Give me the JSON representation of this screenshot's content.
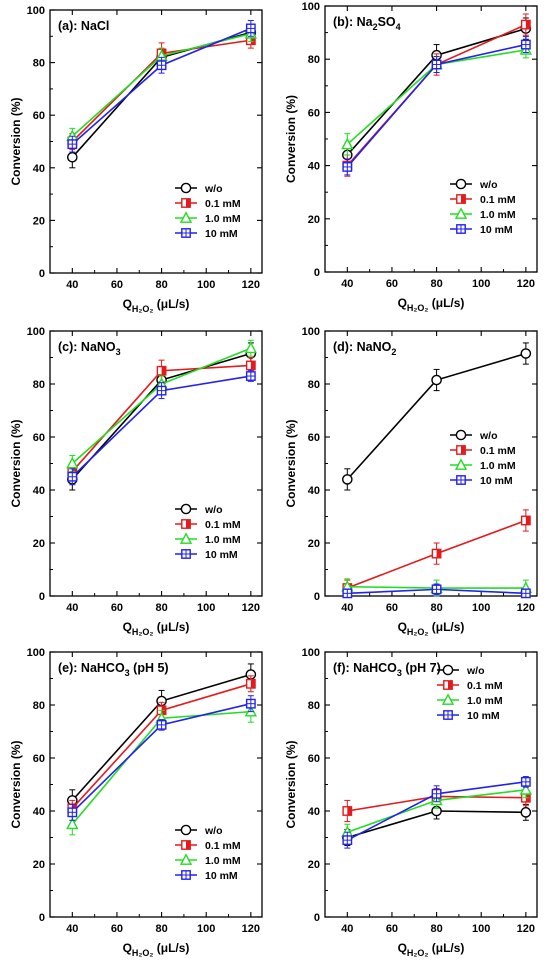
{
  "figure": {
    "colors": {
      "w/o": "#000000",
      "0.1 mM": "#e41a1c",
      "1.0 mM": "#22dd22",
      "10 mM": "#2222ee"
    },
    "marker_shapes": {
      "w/o": "circle",
      "0.1 mM": "half-square",
      "1.0 mM": "triangle",
      "10 mM": "crossed-square"
    }
  },
  "chart_data": [
    {
      "type": "line",
      "title": "(a): NaCl",
      "xlabel": "QH2O2 (μL/s)",
      "ylabel": "Conversion (%)",
      "xlim": [
        30,
        125
      ],
      "ylim": [
        0,
        100
      ],
      "x_ticks": [
        40,
        60,
        80,
        100,
        120
      ],
      "y_ticks": [
        0,
        20,
        40,
        60,
        80,
        100
      ],
      "legend_position": "bottom-right",
      "x": [
        40,
        80,
        120
      ],
      "series": [
        {
          "name": "w/o",
          "values": [
            44,
            82,
            91.5
          ],
          "errors": [
            4,
            3,
            3
          ]
        },
        {
          "name": "0.1 mM",
          "values": [
            50,
            83.5,
            88.5
          ],
          "errors": [
            3,
            4,
            3
          ]
        },
        {
          "name": "1.0 mM",
          "values": [
            52,
            82.5,
            91
          ],
          "errors": [
            3,
            3,
            3
          ]
        },
        {
          "name": "10 mM",
          "values": [
            49,
            79,
            93
          ],
          "errors": [
            3,
            3,
            3
          ]
        }
      ]
    },
    {
      "type": "line",
      "title": "(b): Na2SO4",
      "xlabel": "QH2O2 (μL/s)",
      "ylabel": "Conversion (%)",
      "xlim": [
        30,
        125
      ],
      "ylim": [
        0,
        100
      ],
      "x_ticks": [
        40,
        60,
        80,
        100,
        120
      ],
      "y_ticks": [
        0,
        20,
        40,
        60,
        80,
        100
      ],
      "legend_position": "bottom-right",
      "x": [
        40,
        80,
        120
      ],
      "series": [
        {
          "name": "w/o",
          "values": [
            44,
            81.5,
            91.5
          ],
          "errors": [
            4,
            4,
            4
          ]
        },
        {
          "name": "0.1 mM",
          "values": [
            40,
            78,
            93
          ],
          "errors": [
            4,
            4,
            4
          ]
        },
        {
          "name": "1.0 mM",
          "values": [
            48,
            78,
            83.5
          ],
          "errors": [
            4,
            3,
            3
          ]
        },
        {
          "name": "10 mM",
          "values": [
            39.5,
            78,
            85.5
          ],
          "errors": [
            3,
            3,
            3
          ]
        }
      ]
    },
    {
      "type": "line",
      "title": "(c): NaNO3",
      "xlabel": "QH2O2 (μL/s)",
      "ylabel": "Conversion (%)",
      "xlim": [
        30,
        125
      ],
      "ylim": [
        0,
        100
      ],
      "x_ticks": [
        40,
        60,
        80,
        100,
        120
      ],
      "y_ticks": [
        0,
        20,
        40,
        60,
        80,
        100
      ],
      "legend_position": "bottom-right",
      "x": [
        40,
        80,
        120
      ],
      "series": [
        {
          "name": "w/o",
          "values": [
            44,
            81.5,
            91.5
          ],
          "errors": [
            4,
            4,
            4
          ]
        },
        {
          "name": "0.1 mM",
          "values": [
            47,
            85,
            87
          ],
          "errors": [
            3,
            4,
            3
          ]
        },
        {
          "name": "1.0 mM",
          "values": [
            50,
            80,
            93.5
          ],
          "errors": [
            3,
            3,
            3
          ]
        },
        {
          "name": "10 mM",
          "values": [
            45,
            77.5,
            83
          ],
          "errors": [
            3,
            3,
            2
          ]
        }
      ]
    },
    {
      "type": "line",
      "title": "(d): NaNO2",
      "xlabel": "QH2O2 (μL/s)",
      "ylabel": "Conversion (%)",
      "xlim": [
        30,
        125
      ],
      "ylim": [
        0,
        100
      ],
      "x_ticks": [
        40,
        60,
        80,
        100,
        120
      ],
      "y_ticks": [
        0,
        20,
        40,
        60,
        80,
        100
      ],
      "legend_position": "center-right",
      "x": [
        40,
        80,
        120
      ],
      "series": [
        {
          "name": "w/o",
          "values": [
            44,
            81.5,
            91.5
          ],
          "errors": [
            4,
            4,
            4
          ]
        },
        {
          "name": "0.1 mM",
          "values": [
            3,
            16,
            28.5
          ],
          "errors": [
            3,
            4,
            4
          ]
        },
        {
          "name": "1.0 mM",
          "values": [
            3.5,
            3,
            3
          ],
          "errors": [
            3,
            3,
            3
          ]
        },
        {
          "name": "10 mM",
          "values": [
            1,
            2.5,
            1
          ],
          "errors": [
            1,
            2,
            1
          ]
        }
      ]
    },
    {
      "type": "line",
      "title": "(e): NaHCO3 (pH 5)",
      "xlabel": "QH2O2 (μL/s)",
      "ylabel": "Conversion (%)",
      "xlim": [
        30,
        125
      ],
      "ylim": [
        0,
        100
      ],
      "x_ticks": [
        40,
        60,
        80,
        100,
        120
      ],
      "y_ticks": [
        0,
        20,
        40,
        60,
        80,
        100
      ],
      "legend_position": "bottom-right",
      "x": [
        40,
        80,
        120
      ],
      "series": [
        {
          "name": "w/o",
          "values": [
            44,
            81.5,
            91.5
          ],
          "errors": [
            4,
            4,
            4
          ]
        },
        {
          "name": "0.1 mM",
          "values": [
            41,
            78,
            88
          ],
          "errors": [
            3,
            3,
            3
          ]
        },
        {
          "name": "1.0 mM",
          "values": [
            35,
            75,
            77.5
          ],
          "errors": [
            4,
            3,
            4
          ]
        },
        {
          "name": "10 mM",
          "values": [
            39.5,
            72.5,
            80.5
          ],
          "errors": [
            3,
            2,
            3
          ]
        }
      ]
    },
    {
      "type": "line",
      "title": "(f): NaHCO3 (pH 7)",
      "xlabel": "QH2O2 (μL/s)",
      "ylabel": "Conversion (%)",
      "xlim": [
        30,
        125
      ],
      "ylim": [
        0,
        100
      ],
      "x_ticks": [
        40,
        60,
        80,
        100,
        120
      ],
      "y_ticks": [
        0,
        20,
        40,
        60,
        80,
        100
      ],
      "legend_position": "top-right",
      "x": [
        40,
        80,
        120
      ],
      "series": [
        {
          "name": "w/o",
          "values": [
            30,
            40,
            39.5
          ],
          "errors": [
            3,
            3,
            3
          ]
        },
        {
          "name": "0.1 mM",
          "values": [
            40,
            45.5,
            45
          ],
          "errors": [
            4,
            3,
            3
          ]
        },
        {
          "name": "1.0 mM",
          "values": [
            32,
            44,
            48
          ],
          "errors": [
            3,
            3,
            3
          ]
        },
        {
          "name": "10 mM",
          "values": [
            29,
            46.5,
            51
          ],
          "errors": [
            3,
            3,
            2
          ]
        }
      ]
    }
  ]
}
